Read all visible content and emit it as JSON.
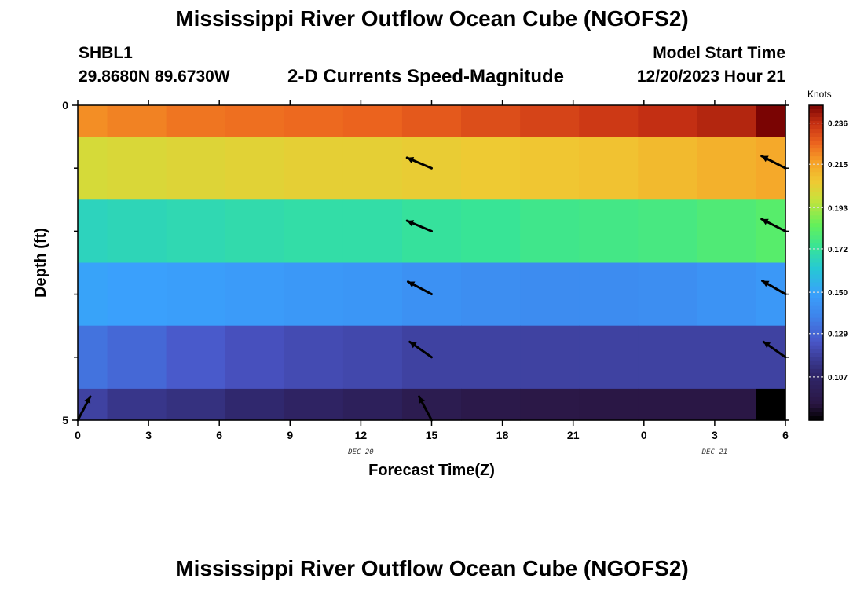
{
  "header": {
    "title": "Mississippi River Outflow Ocean Cube (NGOFS2)",
    "station": "SHBL1",
    "coords": "29.8680N  89.6730W",
    "subtitle": "2-D Currents Speed-Magnitude",
    "model_start_label": "Model Start Time",
    "model_start_value": "12/20/2023 Hour 21"
  },
  "footer": {
    "title": "Mississippi River Outflow Ocean Cube (NGOFS2)"
  },
  "chart_data": {
    "type": "heatmap",
    "title": "2-D Currents Speed-Magnitude",
    "xlabel": "Forecast Time(Z)",
    "ylabel": "Depth (ft)",
    "x_ticks": [
      "0",
      "3",
      "6",
      "9",
      "12",
      "15",
      "18",
      "21",
      "0",
      "3",
      "6"
    ],
    "x_range_hours": [
      0,
      30
    ],
    "date_labels": [
      {
        "label": "DEC 20",
        "hour": 12
      },
      {
        "label": "DEC 21",
        "hour": 27
      }
    ],
    "y_ticks": [
      "0",
      "5"
    ],
    "y_range_ft": [
      0,
      5
    ],
    "depth_bands_ft": [
      0,
      0.5,
      1.5,
      2.5,
      3.5,
      4.5,
      5
    ],
    "time_columns_hours": [
      0,
      1.25,
      3.75,
      6.25,
      8.75,
      11.25,
      13.75,
      16.25,
      18.75,
      21.25,
      23.75,
      26.25,
      28.75,
      30
    ],
    "speed_knots": [
      [
        0.219,
        0.221,
        0.223,
        0.224,
        0.225,
        0.226,
        0.228,
        0.23,
        0.232,
        0.234,
        0.236,
        0.238,
        0.245
      ],
      [
        0.2,
        0.201,
        0.202,
        0.203,
        0.204,
        0.204,
        0.205,
        0.206,
        0.207,
        0.208,
        0.21,
        0.212,
        0.214
      ],
      [
        0.166,
        0.167,
        0.168,
        0.169,
        0.17,
        0.17,
        0.172,
        0.173,
        0.175,
        0.176,
        0.177,
        0.179,
        0.181
      ],
      [
        0.15,
        0.149,
        0.148,
        0.147,
        0.146,
        0.145,
        0.143,
        0.142,
        0.141,
        0.141,
        0.142,
        0.144,
        0.146
      ],
      [
        0.133,
        0.13,
        0.126,
        0.123,
        0.121,
        0.12,
        0.118,
        0.118,
        0.118,
        0.118,
        0.118,
        0.118,
        0.118
      ],
      [
        0.118,
        0.114,
        0.112,
        0.109,
        0.105,
        0.102,
        0.098,
        0.096,
        0.095,
        0.094,
        0.094,
        0.094,
        0.085
      ]
    ],
    "vectors": [
      {
        "hour": 15,
        "depth_ft": 1,
        "angle_deg": 157
      },
      {
        "hour": 15,
        "depth_ft": 2,
        "angle_deg": 157
      },
      {
        "hour": 15,
        "depth_ft": 3,
        "angle_deg": 152
      },
      {
        "hour": 15,
        "depth_ft": 4,
        "angle_deg": 145
      },
      {
        "hour": 15,
        "depth_ft": 5,
        "angle_deg": 118
      },
      {
        "hour": 30,
        "depth_ft": 1,
        "angle_deg": 153
      },
      {
        "hour": 30,
        "depth_ft": 2,
        "angle_deg": 153
      },
      {
        "hour": 30,
        "depth_ft": 3,
        "angle_deg": 150
      },
      {
        "hour": 30,
        "depth_ft": 4,
        "angle_deg": 145
      },
      {
        "hour": 0,
        "depth_ft": 5,
        "angle_deg": 62
      }
    ],
    "colorbar": {
      "unit": "Knots",
      "range": [
        0.085,
        0.245
      ],
      "ticks": [
        "0.236",
        "0.215",
        "0.193",
        "0.172",
        "0.150",
        "0.129",
        "0.107"
      ]
    }
  }
}
